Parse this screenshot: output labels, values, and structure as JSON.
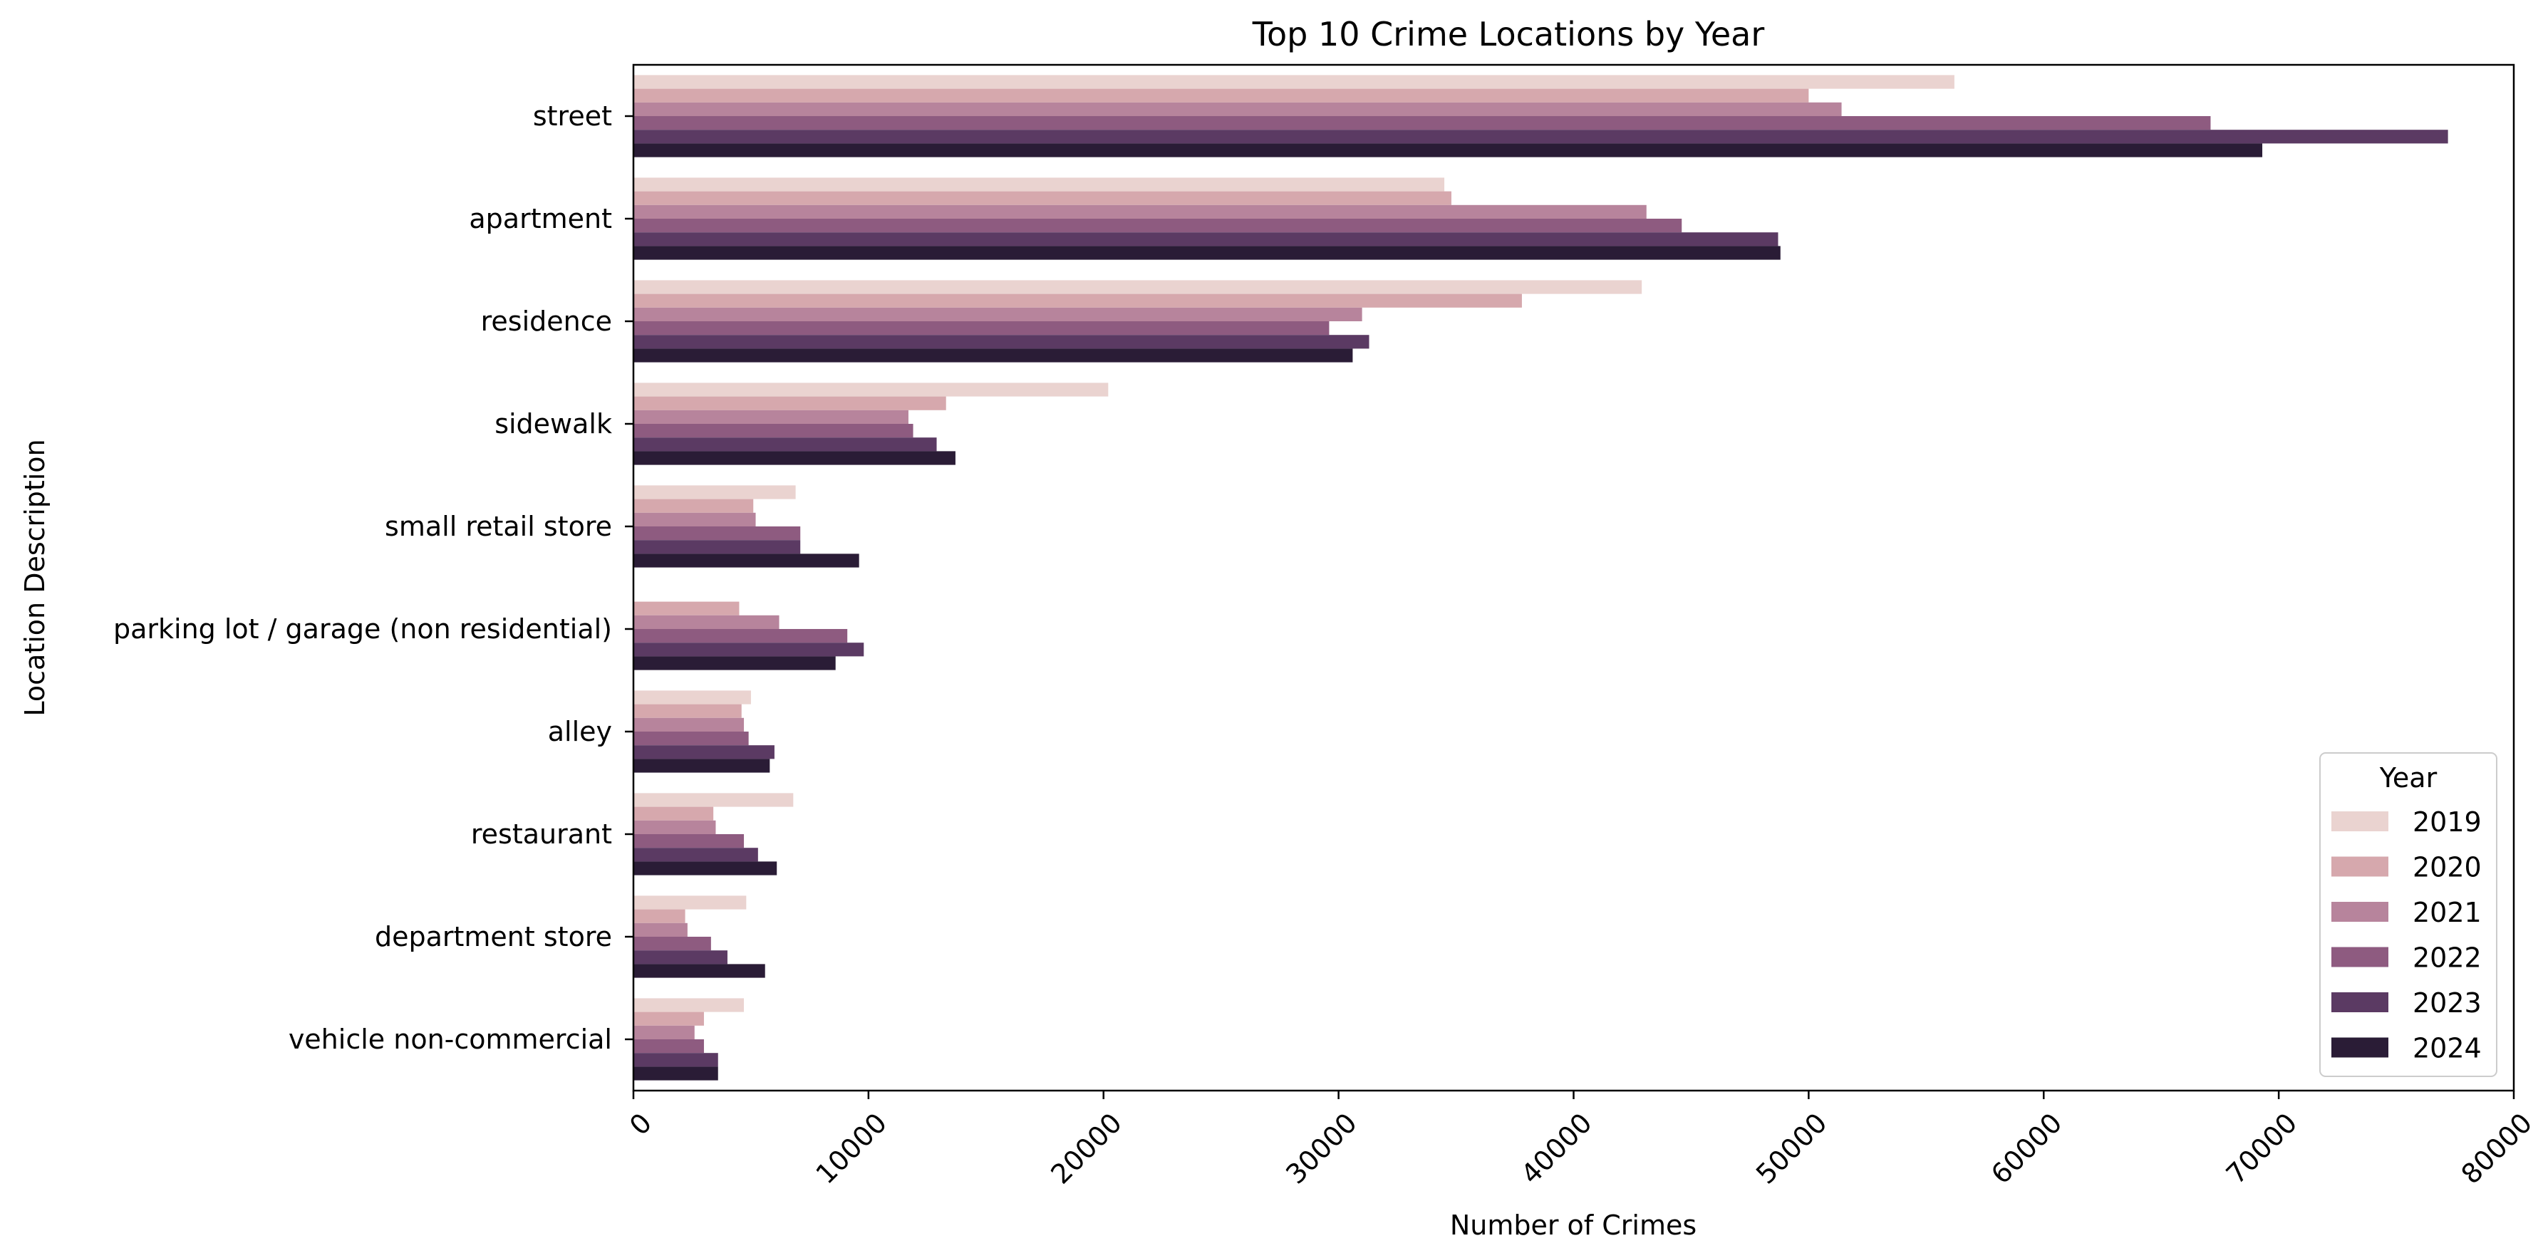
{
  "chart_data": {
    "type": "bar",
    "orientation": "horizontal",
    "title": "Top 10 Crime Locations by Year",
    "xlabel": "Number of Crimes",
    "ylabel": "Location Description",
    "xlim": [
      0,
      80000
    ],
    "xticks": [
      "0",
      "10000",
      "20000",
      "30000",
      "40000",
      "50000",
      "60000",
      "70000",
      "80000"
    ],
    "grid": false,
    "legend": {
      "title": "Year",
      "position": "lower-right"
    },
    "categories": [
      "street",
      "apartment",
      "residence",
      "sidewalk",
      "small retail store",
      "parking lot / garage (non residential)",
      "alley",
      "restaurant",
      "department store",
      "vehicle non-commercial"
    ],
    "series": [
      {
        "name": "2019",
        "color": "#ead3d0",
        "values": [
          56200,
          34500,
          42900,
          20200,
          6900,
          0,
          5000,
          6800,
          4800,
          4700
        ]
      },
      {
        "name": "2020",
        "color": "#d6a8ad",
        "values": [
          50000,
          34800,
          37800,
          13300,
          5100,
          4500,
          4600,
          3400,
          2200,
          3000
        ]
      },
      {
        "name": "2021",
        "color": "#b7849c",
        "values": [
          51400,
          43100,
          31000,
          11700,
          5200,
          6200,
          4700,
          3500,
          2300,
          2600
        ]
      },
      {
        "name": "2022",
        "color": "#8e5b80",
        "values": [
          67100,
          44600,
          29600,
          11900,
          7100,
          9100,
          4900,
          4700,
          3300,
          3000
        ]
      },
      {
        "name": "2023",
        "color": "#5b3a63",
        "values": [
          77200,
          48700,
          31300,
          12900,
          7100,
          9800,
          6000,
          5300,
          4000,
          3600
        ]
      },
      {
        "name": "2024",
        "color": "#2a1c36",
        "values": [
          69300,
          48800,
          30600,
          13700,
          9600,
          8600,
          5800,
          6100,
          5600,
          3600
        ]
      }
    ]
  }
}
